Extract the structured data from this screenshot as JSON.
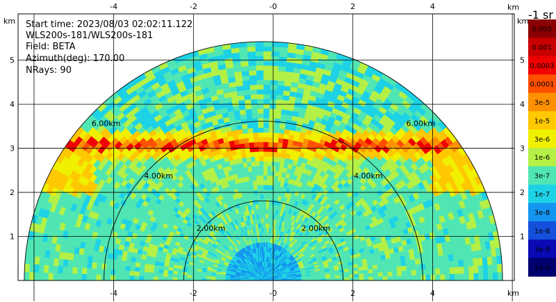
{
  "info": {
    "start_time": "Start time: 2023/08/03 02:02:11.122",
    "instrument": "WLS200s-181/WLS200s-181",
    "field": "Field: BETA",
    "azimuth": "Azimuth(deg): 170.00",
    "nrays": "NRays: 90"
  },
  "axis": {
    "unit_label": "km",
    "x_ticks": [
      "-4",
      "-2",
      "-0",
      "2",
      "4"
    ],
    "y_ticks": [
      "5",
      "4",
      "3",
      "2",
      "1"
    ]
  },
  "rings": {
    "labels": [
      "2.00km",
      "4.00km",
      "6.00km"
    ]
  },
  "colorbar": {
    "unit": "-1 sr",
    "labels": [
      "0.005",
      "0.001",
      "0.0003",
      "0.0001",
      "3e-5",
      "1e-5",
      "3e-6",
      "1e-6",
      "3e-7",
      "1e-7",
      "3e-8",
      "1e-8",
      "3e-9",
      "1e-9"
    ],
    "colors": [
      "#8b0000",
      "#c80000",
      "#f00000",
      "#ff5000",
      "#ff9000",
      "#ffc800",
      "#f0f000",
      "#b4f046",
      "#50e6b4",
      "#1ed2e6",
      "#1496f0",
      "#1450dc",
      "#0a0ab4",
      "#00006e"
    ]
  },
  "chart_data": {
    "type": "heatmap",
    "xlabel": "km",
    "ylabel": "km",
    "xlim": [
      -6.4,
      6.05
    ],
    "ylim": [
      0,
      6.05
    ],
    "x_ticks": [
      -4,
      -2,
      0,
      2,
      4
    ],
    "y_ticks": [
      1,
      2,
      3,
      4,
      5
    ],
    "range_rings_km": [
      2,
      4,
      6
    ],
    "field": "BETA",
    "azimuth_deg": 170.0,
    "n_rays": 90,
    "features": [
      {
        "description": "aerosol/cloud layer",
        "height_km": 3.4
      }
    ]
  }
}
